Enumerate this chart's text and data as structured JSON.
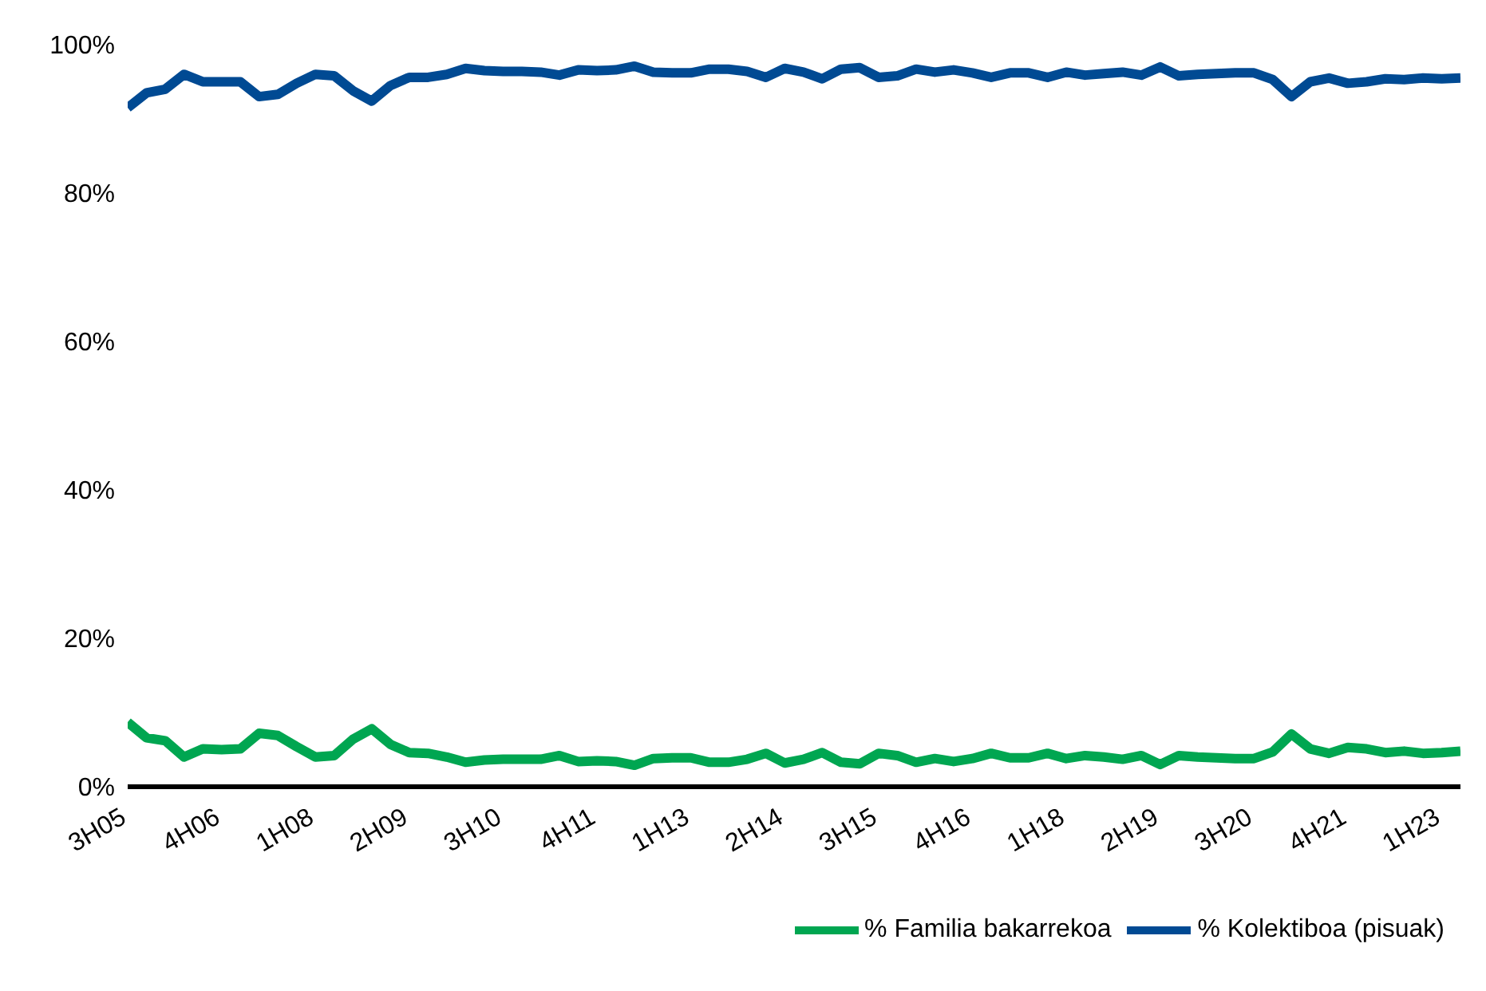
{
  "chart_data": {
    "type": "line",
    "categories": [
      "3H05",
      null,
      null,
      null,
      null,
      "4H06",
      null,
      null,
      null,
      null,
      "1H08",
      null,
      null,
      null,
      null,
      "2H09",
      null,
      null,
      null,
      null,
      "3H10",
      null,
      null,
      null,
      null,
      "4H11",
      null,
      null,
      null,
      null,
      "1H13",
      null,
      null,
      null,
      null,
      "2H14",
      null,
      null,
      null,
      null,
      "3H15",
      null,
      null,
      null,
      null,
      "4H16",
      null,
      null,
      null,
      null,
      "1H18",
      null,
      null,
      null,
      null,
      "2H19",
      null,
      null,
      null,
      null,
      "3H20",
      null,
      null,
      null,
      null,
      "4H21",
      null,
      null,
      null,
      null,
      "1H23",
      null
    ],
    "series": [
      {
        "name": "% Kolektiboa (pisuak)",
        "color": "#004a93",
        "values": [
          91.5,
          93.5,
          94,
          96,
          95,
          95,
          95,
          93,
          93.3,
          94.8,
          96,
          95.8,
          93.8,
          92.4,
          94.5,
          95.6,
          95.6,
          96,
          96.8,
          96.5,
          96.4,
          96.4,
          96.3,
          95.9,
          96.6,
          96.5,
          96.6,
          97.1,
          96.3,
          96.2,
          96.2,
          96.7,
          96.7,
          96.4,
          95.6,
          96.8,
          96.3,
          95.4,
          96.7,
          96.9,
          95.6,
          95.8,
          96.7,
          96.3,
          96.6,
          96.2,
          95.6,
          96.2,
          96.2,
          95.6,
          96.3,
          95.9,
          96.1,
          96.3,
          95.9,
          97,
          95.8,
          96,
          96.1,
          96.2,
          96.2,
          95.3,
          93,
          95,
          95.5,
          94.8,
          95,
          95.4,
          95.3,
          95.5,
          95.4,
          95.5
        ]
      },
      {
        "name": "% Familia bakarrekoa",
        "color": "#00a651",
        "values": [
          8.7,
          6.6,
          6.2,
          4,
          5.1,
          5,
          5.1,
          7.2,
          6.9,
          5.4,
          4,
          4.2,
          6.4,
          7.8,
          5.7,
          4.6,
          4.5,
          4,
          3.3,
          3.6,
          3.7,
          3.7,
          3.7,
          4.2,
          3.4,
          3.5,
          3.4,
          2.9,
          3.8,
          3.9,
          3.9,
          3.3,
          3.3,
          3.7,
          4.5,
          3.2,
          3.7,
          4.6,
          3.3,
          3.1,
          4.5,
          4.2,
          3.3,
          3.8,
          3.4,
          3.8,
          4.5,
          3.9,
          3.9,
          4.5,
          3.8,
          4.2,
          4,
          3.7,
          4.2,
          3,
          4.2,
          4,
          3.9,
          3.8,
          3.8,
          4.7,
          7.1,
          5.1,
          4.5,
          5.3,
          5.1,
          4.6,
          4.8,
          4.5,
          4.6,
          4.8
        ]
      }
    ],
    "ylim": [
      0,
      100
    ],
    "yticks": [
      {
        "value": 0,
        "label": "0%"
      },
      {
        "value": 20,
        "label": "20%"
      },
      {
        "value": 40,
        "label": "40%"
      },
      {
        "value": 60,
        "label": "60%"
      },
      {
        "value": 80,
        "label": "80%"
      },
      {
        "value": 100,
        "label": "100%"
      }
    ],
    "grid": false,
    "legend": "bottom right",
    "marker": "none",
    "line_style": "solid"
  }
}
